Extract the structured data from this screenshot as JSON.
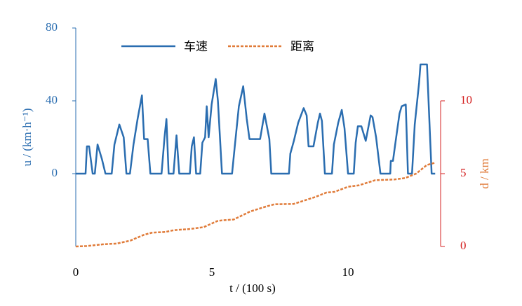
{
  "chart_data": {
    "type": "line",
    "xlabel": "t / (100 s)",
    "ylabel": "u / (km·h⁻¹)",
    "y2label": "d / km",
    "xlim": [
      0,
      13.4
    ],
    "xticks": [
      0,
      5,
      10
    ],
    "ylim": [
      -40,
      80
    ],
    "yticks": [
      0,
      40,
      80
    ],
    "y2lim": [
      0,
      15
    ],
    "y2ticks": [
      0,
      5,
      10
    ],
    "series": [
      {
        "name": "车速",
        "color": "#2a6db0",
        "dash": false,
        "x": [
          0,
          0.36,
          0.41,
          0.49,
          0.62,
          0.7,
          0.8,
          0.96,
          1.09,
          1.32,
          1.42,
          1.6,
          1.76,
          1.86,
          1.99,
          2.12,
          2.27,
          2.43,
          2.51,
          2.64,
          2.74,
          3.15,
          3.26,
          3.33,
          3.41,
          3.59,
          3.7,
          3.8,
          4.19,
          4.26,
          4.34,
          4.42,
          4.57,
          4.65,
          4.75,
          4.81,
          4.88,
          4.99,
          5.14,
          5.22,
          5.37,
          5.74,
          5.84,
          5.99,
          6.15,
          6.28,
          6.38,
          6.77,
          6.93,
          7.11,
          7.18,
          7.83,
          7.88,
          8.01,
          8.17,
          8.37,
          8.48,
          8.55,
          8.73,
          8.89,
          8.97,
          9.04,
          9.15,
          9.41,
          9.48,
          9.64,
          9.77,
          9.87,
          10.0,
          10.21,
          10.28,
          10.36,
          10.49,
          10.65,
          10.83,
          10.9,
          11.03,
          11.19,
          11.55,
          11.57,
          11.65,
          11.75,
          11.89,
          11.97,
          12.12,
          12.2,
          12.35,
          12.45,
          12.61,
          12.66,
          12.9,
          13.07,
          13.2
        ],
        "values": [
          0,
          0,
          15,
          15,
          0,
          0,
          16,
          8,
          0,
          0,
          16,
          27,
          20,
          0,
          0,
          16,
          30,
          43,
          19,
          19,
          0,
          0,
          20,
          30,
          0,
          0,
          21,
          0,
          0,
          15,
          20,
          0,
          0,
          17,
          20,
          37,
          20,
          38,
          52,
          40,
          0,
          0,
          15,
          37,
          48,
          30,
          19,
          19,
          33,
          19,
          0,
          0,
          11,
          18,
          28,
          36,
          32,
          15,
          15,
          28,
          33,
          29,
          0,
          0,
          16,
          28,
          35,
          25,
          0,
          0,
          17,
          26,
          26,
          18,
          32,
          31,
          20,
          0,
          0,
          7,
          7,
          18,
          33,
          37,
          38,
          0,
          0,
          27,
          50,
          60,
          60,
          0,
          0
        ]
      },
      {
        "name": "距离",
        "color": "#e07b39",
        "dash": true,
        "axis": "y2",
        "x": [
          0,
          0.4,
          1,
          1.5,
          2,
          2.5,
          2.8,
          3.3,
          3.6,
          4.2,
          4.7,
          5.2,
          5.4,
          5.8,
          6.4,
          7,
          7.3,
          8,
          8.3,
          8.8,
          9.2,
          9.5,
          10,
          10.4,
          11,
          11.7,
          12.1,
          12.5,
          12.9,
          13.2
        ],
        "values": [
          0,
          0.03,
          0.15,
          0.2,
          0.4,
          0.8,
          0.95,
          1.0,
          1.12,
          1.2,
          1.33,
          1.75,
          1.8,
          1.85,
          2.4,
          2.75,
          2.9,
          2.92,
          3.1,
          3.4,
          3.7,
          3.75,
          4.1,
          4.2,
          4.55,
          4.6,
          4.7,
          5.0,
          5.6,
          5.75
        ]
      }
    ],
    "left_axis_color": "#2a6db0",
    "right_axis_color": "#d42020"
  }
}
